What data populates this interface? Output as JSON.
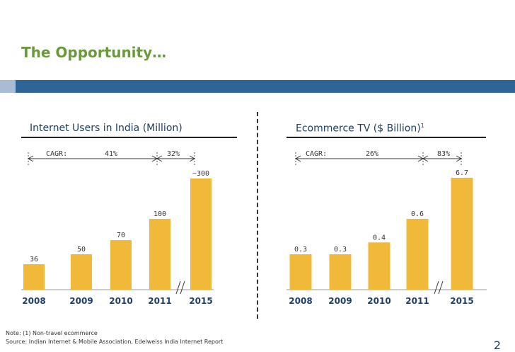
{
  "slide": {
    "title": "The Opportunity…",
    "page_number": "2",
    "notes": [
      "Note: (1) Non-travel ecommerce",
      "Source: Indian Internet & Mobile Association, Edelweiss India Internet Report"
    ]
  },
  "colors": {
    "title": "#6a9a3c",
    "band_left": "#a9bcd4",
    "band": "#2f6596",
    "bar": "#f0b93a",
    "chart_title": "#1f3f66"
  },
  "chart_data": [
    {
      "type": "bar",
      "title": "Internet Users in India (Million)",
      "categories": [
        "2008",
        "2009",
        "2010",
        "2011",
        "2015"
      ],
      "values": [
        36,
        50,
        70,
        100,
        300
      ],
      "value_labels": [
        "36",
        "50",
        "70",
        "100",
        "~300"
      ],
      "axis_break_between": [
        "2011",
        "2015"
      ],
      "cagr": {
        "label": "CAGR:",
        "segments": [
          "41%",
          "32%"
        ]
      },
      "xlabel": "",
      "ylabel": ""
    },
    {
      "type": "bar",
      "title": "Ecommerce TV ($ Billion)",
      "title_superscript": "1",
      "categories": [
        "2008",
        "2009",
        "2010",
        "2011",
        "2015"
      ],
      "values": [
        0.3,
        0.3,
        0.4,
        0.6,
        6.7
      ],
      "value_labels": [
        "0.3",
        "0.3",
        "0.4",
        "0.6",
        "6.7"
      ],
      "axis_break_between": [
        "2011",
        "2015"
      ],
      "cagr": {
        "label": "CAGR:",
        "segments": [
          "26%",
          "83%"
        ]
      },
      "xlabel": "",
      "ylabel": ""
    }
  ]
}
